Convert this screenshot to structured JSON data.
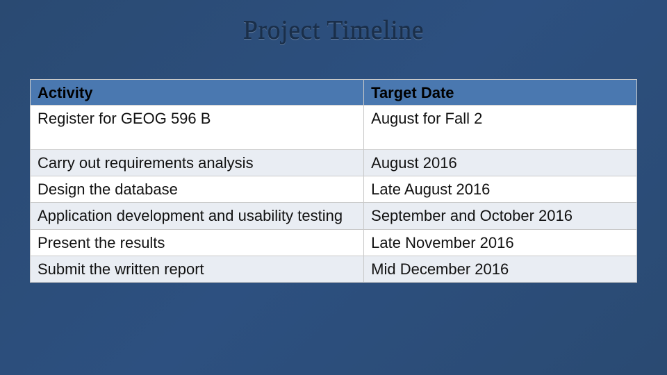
{
  "slide": {
    "title": "Project Timeline",
    "background_colors": [
      "#2a4a72",
      "#2d5080",
      "#2a4a72"
    ],
    "title_color": "#1a2f4a",
    "title_fontsize": 38,
    "title_font": "Georgia"
  },
  "table": {
    "header_bg": "#4a78b0",
    "row_colors": {
      "even": "#e9edf3",
      "odd": "#ffffff"
    },
    "border_color": "#c9c9c9",
    "fontsize": 22,
    "columns": [
      {
        "key": "activity",
        "label": "Activity",
        "width_pct": 55
      },
      {
        "key": "target_date",
        "label": "Target Date",
        "width_pct": 45
      }
    ],
    "rows": [
      {
        "activity": "Register for GEOG 596 B",
        "target_date": "August for Fall 2",
        "tall": true
      },
      {
        "activity": "Carry out requirements analysis",
        "target_date": "August 2016"
      },
      {
        "activity": "Design the database",
        "target_date": "Late August 2016"
      },
      {
        "activity": "Application development and usability testing",
        "target_date": "September and October 2016"
      },
      {
        "activity": "Present the results",
        "target_date": "Late November 2016"
      },
      {
        "activity": "Submit the written report",
        "target_date": "Mid December 2016"
      }
    ]
  }
}
